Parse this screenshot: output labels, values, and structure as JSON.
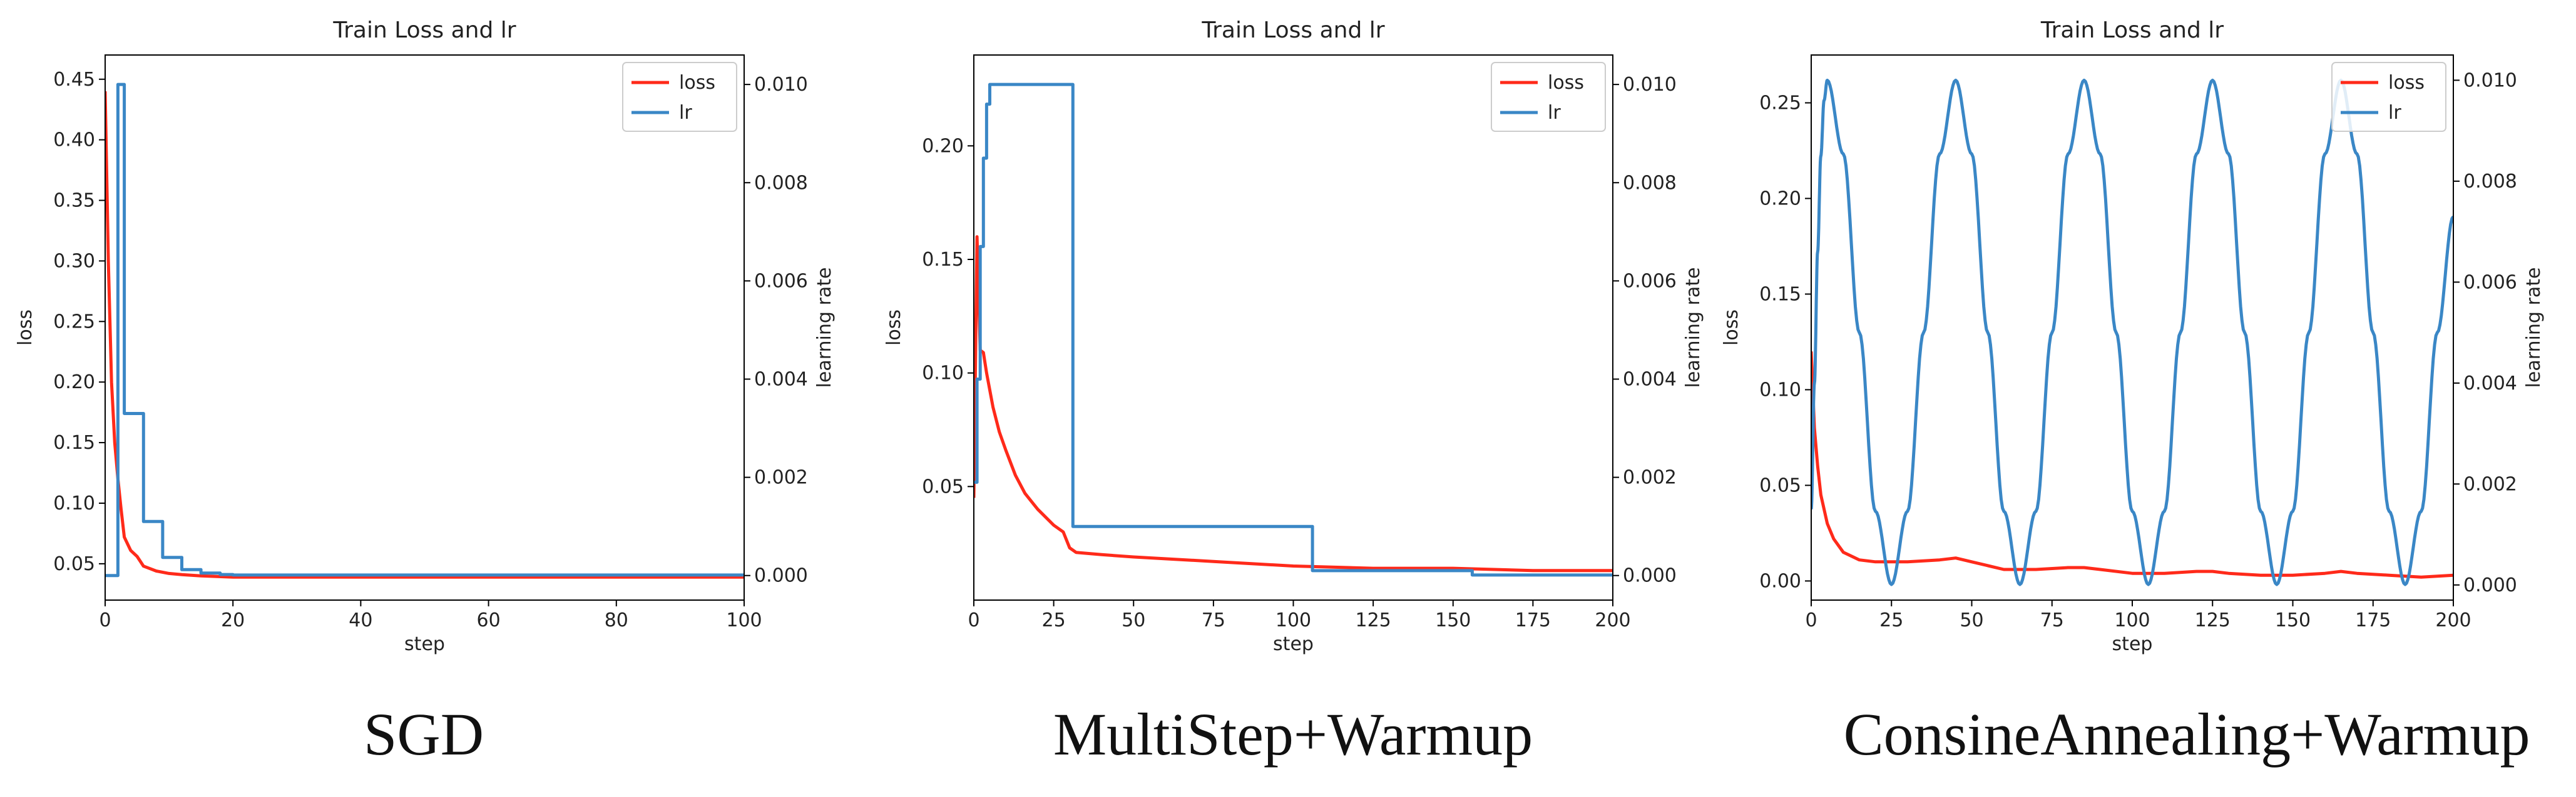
{
  "colors": {
    "loss": "#ff2a1a",
    "lr": "#3a87c6",
    "axis": "#000000"
  },
  "chart_data": [
    {
      "type": "line",
      "caption": "SGD",
      "title": "Train Loss and lr",
      "xlabel": "step",
      "ylabel": "loss",
      "y2label": "learning rate",
      "xlim": [
        0,
        100
      ],
      "ylim": [
        0.02,
        0.47
      ],
      "y2lim": [
        -0.0005,
        0.0106
      ],
      "xticks": [
        0,
        20,
        40,
        60,
        80,
        100
      ],
      "yticks": [
        0.05,
        0.1,
        0.15,
        0.2,
        0.25,
        0.3,
        0.35,
        0.4,
        0.45
      ],
      "ytick_labels": [
        "0.05",
        "0.10",
        "0.15",
        "0.20",
        "0.25",
        "0.30",
        "0.35",
        "0.40",
        "0.45"
      ],
      "y2ticks": [
        0.0,
        0.002,
        0.004,
        0.006,
        0.008,
        0.01
      ],
      "y2tick_labels": [
        "0.000",
        "0.002",
        "0.004",
        "0.006",
        "0.008",
        "0.010"
      ],
      "legend": {
        "placement": "top-right",
        "entries": [
          "loss",
          "lr"
        ]
      },
      "series": [
        {
          "name": "loss",
          "axis": "left",
          "color": "#ff2a1a",
          "x": [
            0,
            0.5,
            1,
            1.5,
            2,
            2.5,
            3,
            4,
            5,
            6,
            7,
            8,
            10,
            12,
            15,
            20,
            30,
            40,
            50,
            60,
            70,
            80,
            90,
            100
          ],
          "y": [
            0.44,
            0.3,
            0.2,
            0.15,
            0.12,
            0.095,
            0.072,
            0.061,
            0.056,
            0.048,
            0.046,
            0.044,
            0.042,
            0.041,
            0.04,
            0.039,
            0.039,
            0.039,
            0.039,
            0.039,
            0.039,
            0.039,
            0.039,
            0.039
          ]
        },
        {
          "name": "lr",
          "axis": "right",
          "color": "#3a87c6",
          "step": true,
          "x": [
            0,
            2,
            3,
            5,
            6,
            8,
            9,
            11,
            12,
            14,
            15,
            17,
            18,
            20,
            100
          ],
          "y": [
            0.0,
            0.01,
            0.0033,
            0.0033,
            0.0011,
            0.0011,
            0.00037,
            0.00037,
            0.00012,
            0.00012,
            5e-05,
            5e-05,
            2e-05,
            1e-05,
            1e-05
          ]
        }
      ]
    },
    {
      "type": "line",
      "caption": "MultiStep+Warmup",
      "title": "Train Loss and lr",
      "xlabel": "step",
      "ylabel": "loss",
      "y2label": "learning rate",
      "xlim": [
        0,
        200
      ],
      "ylim": [
        0.0,
        0.24
      ],
      "y2lim": [
        -0.0005,
        0.0106
      ],
      "xticks": [
        0,
        25,
        50,
        75,
        100,
        125,
        150,
        175,
        200
      ],
      "yticks": [
        0.05,
        0.1,
        0.15,
        0.2
      ],
      "ytick_labels": [
        "0.05",
        "0.10",
        "0.15",
        "0.20"
      ],
      "y2ticks": [
        0.0,
        0.002,
        0.004,
        0.006,
        0.008,
        0.01
      ],
      "y2tick_labels": [
        "0.000",
        "0.002",
        "0.004",
        "0.006",
        "0.008",
        "0.010"
      ],
      "legend": {
        "placement": "top-right",
        "entries": [
          "loss",
          "lr"
        ]
      },
      "series": [
        {
          "name": "loss",
          "axis": "left",
          "color": "#ff2a1a",
          "x": [
            0,
            1,
            2,
            3,
            4,
            6,
            8,
            10,
            13,
            16,
            20,
            25,
            28,
            30,
            32,
            40,
            50,
            75,
            100,
            125,
            150,
            175,
            200
          ],
          "y": [
            0.045,
            0.16,
            0.11,
            0.109,
            0.1,
            0.085,
            0.074,
            0.066,
            0.055,
            0.047,
            0.04,
            0.033,
            0.03,
            0.023,
            0.021,
            0.02,
            0.019,
            0.017,
            0.015,
            0.014,
            0.014,
            0.013,
            0.013
          ]
        },
        {
          "name": "lr",
          "axis": "right",
          "color": "#3a87c6",
          "step": true,
          "x": [
            0,
            1,
            2,
            3,
            4,
            5,
            30,
            31,
            105,
            106,
            155,
            156,
            200
          ],
          "y": [
            0.0019,
            0.004,
            0.0067,
            0.0085,
            0.0096,
            0.01,
            0.01,
            0.001,
            0.001,
            0.0001,
            0.0001,
            1e-05,
            1e-05
          ]
        }
      ]
    },
    {
      "type": "line",
      "caption": "ConsineAnnealing+Warmup",
      "title": "Train Loss and lr",
      "xlabel": "step",
      "ylabel": "loss",
      "y2label": "learning rate",
      "xlim": [
        0,
        200
      ],
      "ylim": [
        -0.01,
        0.275
      ],
      "y2lim": [
        -0.0003,
        0.0105
      ],
      "xticks": [
        0,
        25,
        50,
        75,
        100,
        125,
        150,
        175,
        200
      ],
      "yticks": [
        0.0,
        0.05,
        0.1,
        0.15,
        0.2,
        0.25
      ],
      "ytick_labels": [
        "0.00",
        "0.05",
        "0.10",
        "0.15",
        "0.20",
        "0.25"
      ],
      "y2ticks": [
        0.0,
        0.002,
        0.004,
        0.006,
        0.008,
        0.01
      ],
      "y2tick_labels": [
        "0.000",
        "0.002",
        "0.004",
        "0.006",
        "0.008",
        "0.010"
      ],
      "legend": {
        "placement": "top-right",
        "entries": [
          "loss",
          "lr"
        ]
      },
      "series": [
        {
          "name": "loss",
          "axis": "left",
          "color": "#ff2a1a",
          "x": [
            0,
            1,
            2,
            3,
            5,
            7,
            10,
            15,
            20,
            30,
            40,
            45,
            50,
            60,
            70,
            80,
            85,
            90,
            100,
            110,
            120,
            125,
            130,
            140,
            150,
            160,
            165,
            170,
            180,
            190,
            200
          ],
          "y": [
            0.12,
            0.08,
            0.06,
            0.045,
            0.03,
            0.022,
            0.015,
            0.011,
            0.01,
            0.01,
            0.011,
            0.012,
            0.01,
            0.006,
            0.006,
            0.007,
            0.007,
            0.006,
            0.004,
            0.004,
            0.005,
            0.005,
            0.004,
            0.003,
            0.003,
            0.004,
            0.005,
            0.004,
            0.003,
            0.002,
            0.003
          ]
        },
        {
          "name": "lr",
          "axis": "right",
          "color": "#3a87c6",
          "curve": "cosine",
          "x": [
            0,
            1,
            2,
            3,
            4,
            5,
            10,
            15,
            20,
            25,
            30,
            35,
            40,
            45,
            50,
            55,
            60,
            65,
            70,
            75,
            80,
            85,
            90,
            95,
            100,
            105,
            110,
            115,
            120,
            125,
            130,
            135,
            140,
            145,
            150,
            155,
            160,
            165,
            170,
            175,
            180,
            185,
            190,
            195,
            200
          ],
          "y": [
            0.0015,
            0.004,
            0.0066,
            0.0085,
            0.0096,
            0.01,
            0.00854,
            0.005,
            0.00146,
            1e-05,
            0.00146,
            0.005,
            0.00854,
            0.01,
            0.00854,
            0.005,
            0.00146,
            1e-05,
            0.00146,
            0.005,
            0.00854,
            0.01,
            0.00854,
            0.005,
            0.00146,
            1e-05,
            0.00146,
            0.005,
            0.00854,
            0.01,
            0.00854,
            0.005,
            0.00146,
            1e-05,
            0.00146,
            0.005,
            0.00854,
            0.01,
            0.00854,
            0.005,
            0.00146,
            1e-05,
            0.00146,
            0.005,
            0.0073
          ]
        }
      ]
    }
  ]
}
